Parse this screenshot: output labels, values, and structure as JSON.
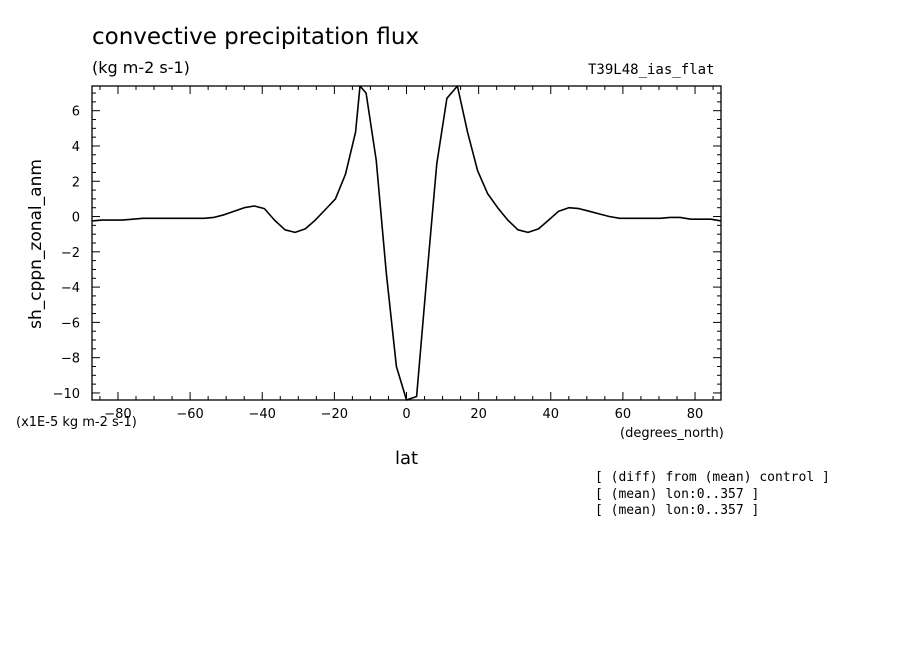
{
  "title": "convective precipitation flux",
  "units": "(kg m-2 s-1)",
  "experiment": "T39L48_ias_flat",
  "notes": [
    "[ (diff) from (mean) control ]",
    "[ (mean) lon:0..357 ]",
    "[ (mean) lon:0..357 ]"
  ],
  "chart_data": {
    "type": "line",
    "xlabel": "lat",
    "xunits": "(degrees_north)",
    "ylabel": "sh_cppn_zonal_anm",
    "yscale_note": "(x1E-5 kg m-2 s-1)",
    "xlim": [
      -87.2,
      87.2
    ],
    "ylim": [
      -10.4,
      7.4
    ],
    "xticks": [
      -80,
      -60,
      -40,
      -20,
      0,
      20,
      40,
      60,
      80
    ],
    "yticks": [
      -10,
      -8,
      -6,
      -4,
      -2,
      0,
      2,
      4,
      6
    ],
    "grid": false,
    "line_color": "#000000",
    "series": [
      {
        "x": [
          -87.2,
          -84.4,
          -81.6,
          -78.8,
          -75.9,
          -73.1,
          -70.3,
          -67.5,
          -64.7,
          -61.9,
          -59.1,
          -56.2,
          -53.4,
          -50.6,
          -47.8,
          -45.0,
          -42.2,
          -39.4,
          -36.6,
          -33.7,
          -30.9,
          -28.1,
          -25.3,
          -22.5,
          -19.7,
          -16.9,
          -14.1,
          -12.9,
          -11.2,
          -8.4,
          -5.6,
          -2.8,
          0.0,
          2.8,
          5.6,
          8.4,
          11.2,
          14.1,
          16.9,
          19.7,
          22.5,
          25.3,
          28.1,
          30.9,
          33.7,
          36.6,
          39.4,
          42.2,
          45.0,
          47.8,
          50.6,
          53.4,
          56.2,
          59.1,
          61.9,
          64.7,
          67.5,
          70.3,
          73.1,
          75.9,
          78.8,
          81.6,
          84.4,
          87.2
        ],
        "y": [
          -0.25,
          -0.2,
          -0.2,
          -0.2,
          -0.15,
          -0.1,
          -0.1,
          -0.1,
          -0.1,
          -0.1,
          -0.1,
          -0.1,
          -0.05,
          0.1,
          0.3,
          0.5,
          0.6,
          0.45,
          -0.2,
          -0.75,
          -0.9,
          -0.7,
          -0.2,
          0.4,
          1.0,
          2.4,
          4.8,
          7.4,
          7.0,
          3.2,
          -3.2,
          -8.5,
          -10.4,
          -10.2,
          -3.5,
          3.0,
          6.7,
          7.4,
          4.8,
          2.6,
          1.3,
          0.5,
          -0.2,
          -0.75,
          -0.9,
          -0.7,
          -0.2,
          0.3,
          0.5,
          0.45,
          0.3,
          0.15,
          0.0,
          -0.1,
          -0.1,
          -0.1,
          -0.1,
          -0.1,
          -0.05,
          -0.05,
          -0.15,
          -0.15,
          -0.15,
          -0.25
        ]
      }
    ]
  }
}
